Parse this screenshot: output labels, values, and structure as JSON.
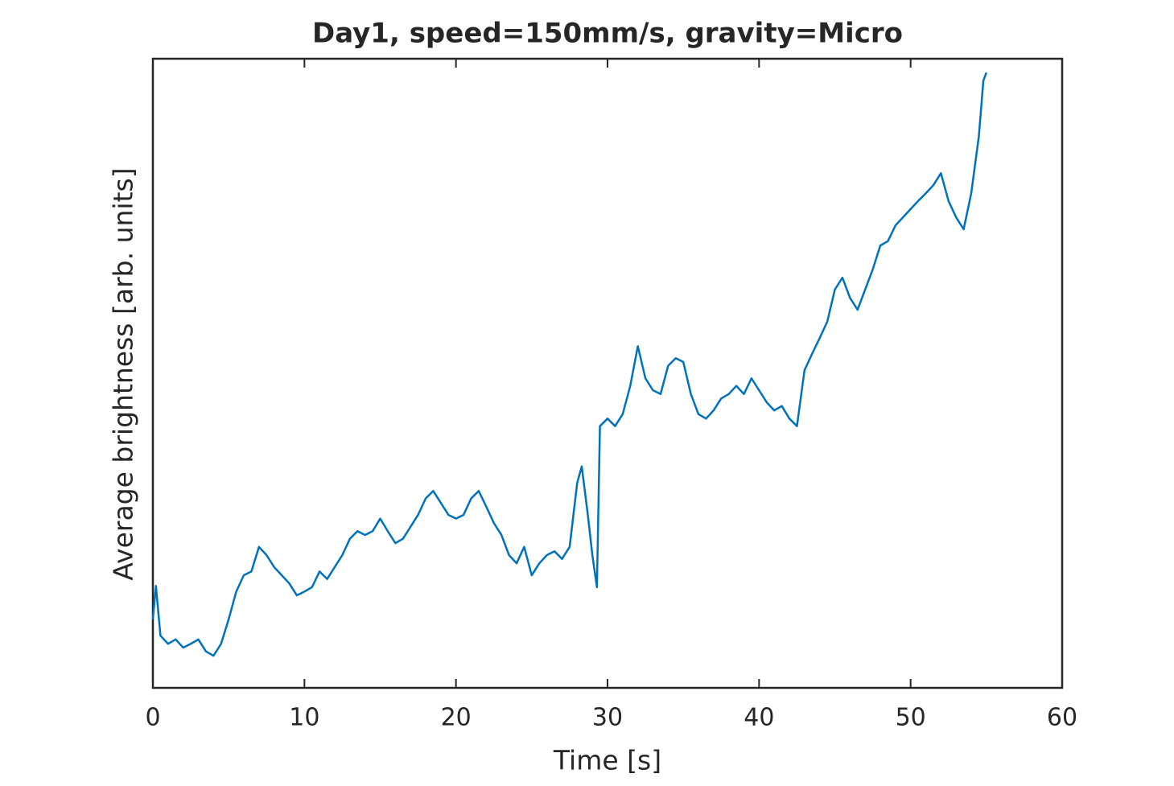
{
  "chart_data": {
    "type": "line",
    "title": "Day1, speed=150mm/s, gravity=Micro",
    "x_label": "Time [s]",
    "y_label": "Average brightness [arb. units]",
    "x": [
      0,
      0.2,
      0.5,
      1,
      1.5,
      2,
      2.5,
      3,
      3.5,
      4,
      4.5,
      5,
      5.5,
      6,
      6.5,
      7,
      7.5,
      8,
      8.5,
      9,
      9.5,
      10,
      10.5,
      11,
      11.5,
      12,
      12.5,
      13,
      13.5,
      14,
      14.5,
      15,
      15.5,
      16,
      16.5,
      17,
      17.5,
      18,
      18.5,
      19,
      19.5,
      20,
      20.5,
      21,
      21.5,
      22,
      22.5,
      23,
      23.5,
      24,
      24.5,
      25,
      25.5,
      26,
      26.5,
      27,
      27.5,
      28,
      28.3,
      28.7,
      29,
      29.3,
      29.5,
      30,
      30.5,
      31,
      31.5,
      32,
      32.5,
      33,
      33.5,
      34,
      34.5,
      35,
      35.5,
      36,
      36.5,
      37,
      37.5,
      38,
      38.5,
      39,
      39.5,
      40,
      40.5,
      41,
      41.5,
      42,
      42.5,
      43,
      43.5,
      44,
      44.5,
      45,
      45.5,
      46,
      46.5,
      47,
      47.5,
      48,
      48.5,
      49,
      49.5,
      50,
      50.5,
      51,
      51.5,
      52,
      52.5,
      53,
      53.5,
      54,
      54.5,
      54.8,
      55
    ],
    "series": [
      {
        "color": "#0072bd",
        "values": [
          10.9,
          16.2,
          8.3,
          7.0,
          7.7,
          6.4,
          7.0,
          7.7,
          5.8,
          5.1,
          7.0,
          10.9,
          15.3,
          17.9,
          18.5,
          22.4,
          21.1,
          19.2,
          17.9,
          16.6,
          14.7,
          15.3,
          16.0,
          18.5,
          17.3,
          19.2,
          21.1,
          23.7,
          24.9,
          24.3,
          24.9,
          26.9,
          24.9,
          23.0,
          23.7,
          25.6,
          27.5,
          30.1,
          31.3,
          29.4,
          27.5,
          26.9,
          27.5,
          30.1,
          31.3,
          28.8,
          26.2,
          24.3,
          21.1,
          19.8,
          22.4,
          17.9,
          19.8,
          21.1,
          21.7,
          20.5,
          22.4,
          32.6,
          35.2,
          27.5,
          21.1,
          16.0,
          41.6,
          42.8,
          41.6,
          43.5,
          48.0,
          54.3,
          49.2,
          47.3,
          46.7,
          51.2,
          52.4,
          51.8,
          46.7,
          43.5,
          42.8,
          44.1,
          46.0,
          46.7,
          48.0,
          46.7,
          49.2,
          47.3,
          45.4,
          44.1,
          44.8,
          42.8,
          41.6,
          50.5,
          53.1,
          55.6,
          58.2,
          63.3,
          65.2,
          62.0,
          60.1,
          63.3,
          66.5,
          70.3,
          71.0,
          73.5,
          74.8,
          76.1,
          77.4,
          78.6,
          79.9,
          81.8,
          77.4,
          74.8,
          72.9,
          78.6,
          87.6,
          96.5,
          97.8
        ]
      }
    ],
    "xlim": [
      0,
      60
    ],
    "xticks": [
      0,
      10,
      20,
      30,
      40,
      50,
      60
    ],
    "ylim": [
      0,
      100
    ]
  }
}
